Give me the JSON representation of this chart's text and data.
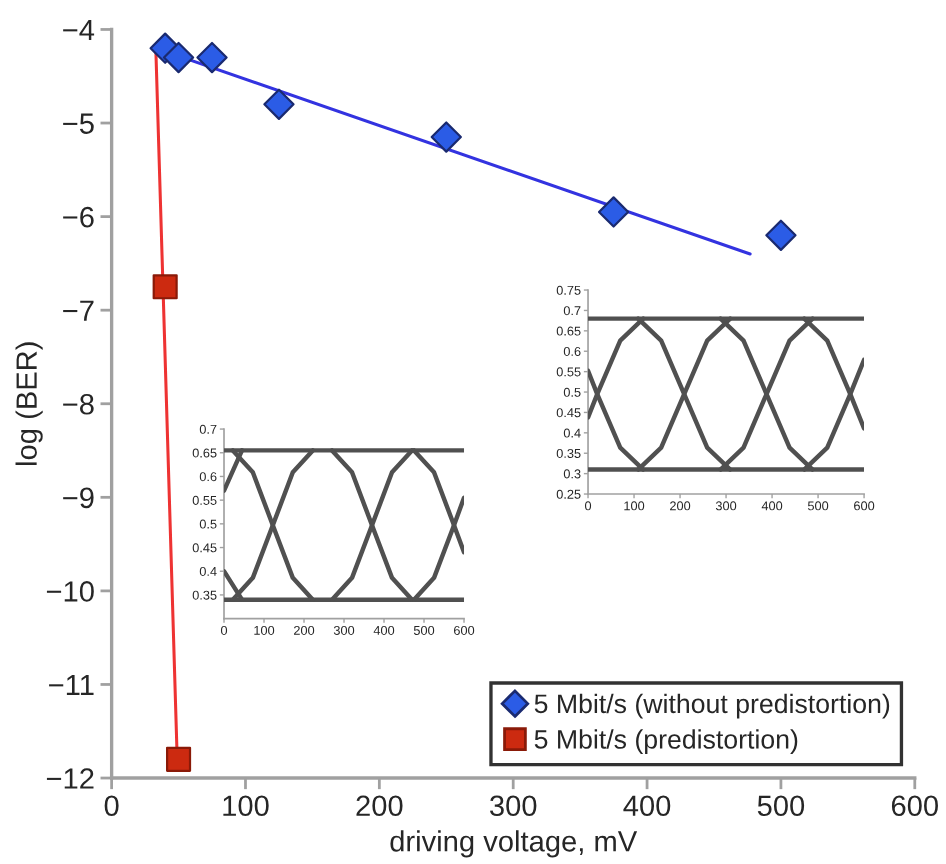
{
  "chart_data": [
    {
      "type": "scatter",
      "xlabel": "driving voltage, mV",
      "ylabel": "log (BER)",
      "xlim": [
        0,
        600
      ],
      "ylim": [
        -12,
        -4
      ],
      "xticks": [
        0,
        100,
        200,
        300,
        400,
        500,
        600
      ],
      "yticks": [
        -12,
        -11,
        -10,
        -9,
        -8,
        -7,
        -6,
        -5,
        -4
      ],
      "legend": "bottom right",
      "series": [
        {
          "name": "5 Mbit/s (without predistortion)",
          "color": "#2b5ce6",
          "marker": "diamond",
          "x": [
            40,
            50,
            75,
            125,
            250,
            375,
            500
          ],
          "values": [
            -4.2,
            -4.3,
            -4.3,
            -4.8,
            -5.15,
            -5.95,
            -6.2
          ]
        },
        {
          "name": "5 Mbit/s (predistortion)",
          "color": "#cc2a10",
          "marker": "square",
          "x": [
            40,
            50
          ],
          "values": [
            -6.75,
            -11.8
          ]
        },
        {
          "type": "line",
          "color": "#3333e0",
          "x": [
            33,
            477
          ],
          "values": [
            -4.2,
            -6.4
          ]
        },
        {
          "type": "line",
          "color": "#ee3333",
          "x": [
            33,
            49
          ],
          "values": [
            -4.2,
            -11.8
          ]
        }
      ]
    },
    {
      "type": "line",
      "xlim": [
        0,
        600
      ],
      "ylim": [
        0.25,
        0.75
      ],
      "xticks": [
        0,
        100,
        200,
        300,
        400,
        500,
        600
      ],
      "yticks": [
        0.25,
        0.3,
        0.35,
        0.4,
        0.45,
        0.5,
        0.55,
        0.6,
        0.65,
        0.7,
        0.75
      ],
      "series": [
        {
          "color": "#505050",
          "x": [
            0,
            600
          ],
          "values": [
            0.68,
            0.68
          ]
        },
        {
          "color": "#505050",
          "x": [
            0,
            600
          ],
          "values": [
            0.31,
            0.31
          ]
        },
        {
          "color": "#505050",
          "x": [
            0,
            20,
            70,
            120
          ],
          "values": [
            0.552,
            0.495,
            0.364,
            0.31
          ]
        },
        {
          "color": "#505050",
          "x": [
            0,
            20,
            70,
            120
          ],
          "values": [
            0.438,
            0.495,
            0.626,
            0.68
          ]
        },
        {
          "color": "#505050",
          "x": [
            109,
            159,
            209,
            259,
            309
          ],
          "values": [
            0.68,
            0.626,
            0.495,
            0.364,
            0.31
          ]
        },
        {
          "color": "#505050",
          "x": [
            109,
            159,
            209,
            259,
            309
          ],
          "values": [
            0.31,
            0.364,
            0.495,
            0.626,
            0.68
          ]
        },
        {
          "color": "#505050",
          "x": [
            288,
            338,
            388,
            438,
            488
          ],
          "values": [
            0.68,
            0.626,
            0.495,
            0.364,
            0.31
          ]
        },
        {
          "color": "#505050",
          "x": [
            288,
            338,
            388,
            438,
            488
          ],
          "values": [
            0.31,
            0.364,
            0.495,
            0.626,
            0.68
          ]
        },
        {
          "color": "#505050",
          "x": [
            470,
            520,
            570,
            600
          ],
          "values": [
            0.68,
            0.626,
            0.495,
            0.411
          ]
        },
        {
          "color": "#505050",
          "x": [
            470,
            520,
            570,
            600
          ],
          "values": [
            0.31,
            0.364,
            0.495,
            0.579
          ]
        }
      ]
    },
    {
      "type": "line",
      "xlim": [
        0,
        600
      ],
      "ylim": [
        0.3,
        0.7
      ],
      "xticks": [
        0,
        100,
        200,
        300,
        400,
        500,
        600
      ],
      "yticks": [
        0.35,
        0.4,
        0.45,
        0.5,
        0.55,
        0.6,
        0.65,
        0.7
      ],
      "series": [
        {
          "color": "#505050",
          "x": [
            0,
            600
          ],
          "values": [
            0.655,
            0.655
          ]
        },
        {
          "color": "#505050",
          "x": [
            0,
            600
          ],
          "values": [
            0.34,
            0.34
          ]
        },
        {
          "color": "#505050",
          "x": [
            0,
            45
          ],
          "values": [
            0.57,
            0.655
          ]
        },
        {
          "color": "#505050",
          "x": [
            0,
            45
          ],
          "values": [
            0.4,
            0.34
          ]
        },
        {
          "color": "#505050",
          "x": [
            22,
            72,
            122,
            172,
            222
          ],
          "values": [
            0.655,
            0.609,
            0.497,
            0.386,
            0.34
          ]
        },
        {
          "color": "#505050",
          "x": [
            22,
            72,
            122,
            172,
            222
          ],
          "values": [
            0.34,
            0.386,
            0.497,
            0.609,
            0.655
          ]
        },
        {
          "color": "#505050",
          "x": [
            270,
            320,
            370,
            420,
            470
          ],
          "values": [
            0.655,
            0.609,
            0.497,
            0.386,
            0.34
          ]
        },
        {
          "color": "#505050",
          "x": [
            270,
            320,
            370,
            420,
            470
          ],
          "values": [
            0.34,
            0.386,
            0.497,
            0.609,
            0.655
          ]
        },
        {
          "color": "#505050",
          "x": [
            475,
            525,
            575,
            600
          ],
          "values": [
            0.655,
            0.609,
            0.497,
            0.44
          ]
        },
        {
          "color": "#505050",
          "x": [
            475,
            525,
            575,
            600
          ],
          "values": [
            0.34,
            0.386,
            0.497,
            0.555
          ]
        }
      ]
    }
  ]
}
